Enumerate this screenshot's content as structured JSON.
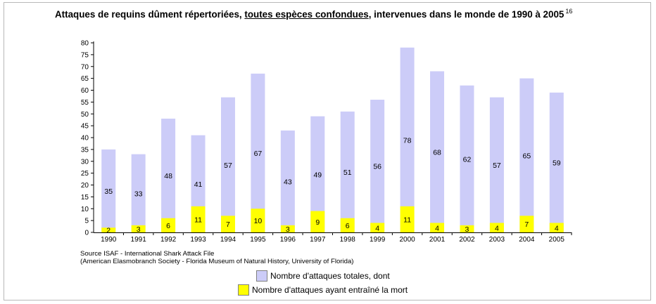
{
  "title": {
    "part1": "Attaques de requins dûment répertoriées, ",
    "part2": "toutes espèces confondues",
    "part3": ", intervenues dans le monde de 1990 à 2005",
    "footnote": "16"
  },
  "source": {
    "line1": "Source ISAF - International Shark Attack File",
    "line2": "(American Elasmobranch Society - Florida Museum of Natural History, University of Florida)"
  },
  "colors": {
    "total": "#ccccf8",
    "deaths": "#ffff00"
  },
  "chart_data": {
    "type": "bar",
    "categories": [
      "1990",
      "1991",
      "1992",
      "1993",
      "1994",
      "1995",
      "1996",
      "1997",
      "1998",
      "1999",
      "2000",
      "2001",
      "2002",
      "2003",
      "2004",
      "2005"
    ],
    "series": [
      {
        "name": "Nombre d'attaques totales, dont",
        "values": [
          35,
          33,
          48,
          41,
          57,
          67,
          43,
          49,
          51,
          56,
          78,
          68,
          62,
          57,
          65,
          59
        ]
      },
      {
        "name": "Nombre d'attaques ayant entraîné la mort",
        "values": [
          2,
          3,
          6,
          11,
          7,
          10,
          3,
          9,
          6,
          4,
          11,
          4,
          3,
          4,
          7,
          4
        ]
      }
    ],
    "ylim": [
      0,
      80
    ],
    "yticks": [
      0,
      5,
      10,
      15,
      20,
      25,
      30,
      35,
      40,
      45,
      50,
      55,
      60,
      65,
      70,
      75,
      80
    ],
    "legend_position": "bottom",
    "grid": false
  }
}
